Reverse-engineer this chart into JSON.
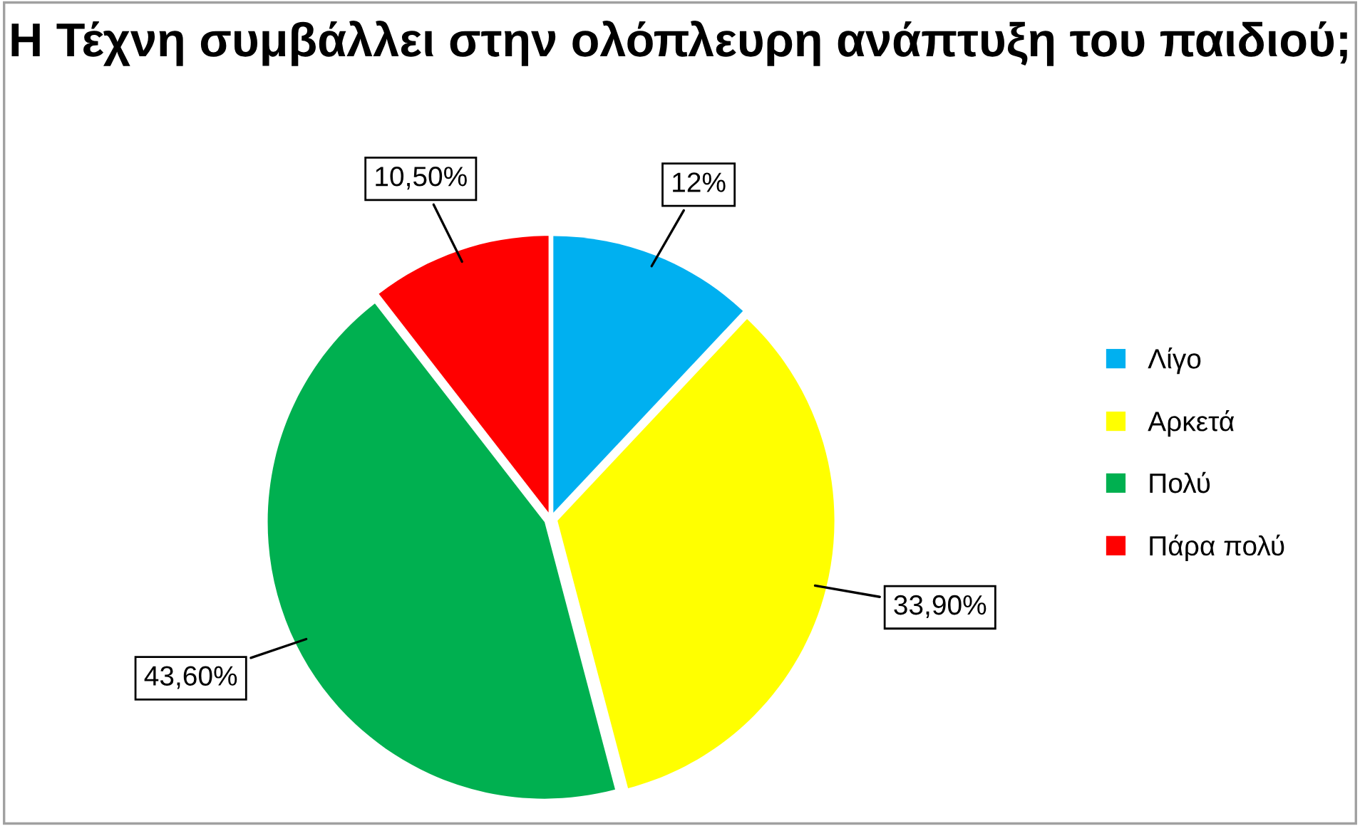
{
  "chart_data": {
    "type": "pie",
    "title": "Η Τέχνη συμβάλλει στην ολόπλευρη ανάπτυξη του παιδιού;",
    "categories": [
      "Λίγο",
      "Αρκετά",
      "Πολύ",
      "Πάρα πολύ"
    ],
    "values": [
      12,
      33.9,
      43.6,
      10.5
    ],
    "value_labels": [
      "12%",
      "33,90%",
      "43,60%",
      "10,50%"
    ],
    "colors": [
      "#00b0f0",
      "#ffff00",
      "#00b050",
      "#ff0000"
    ],
    "legend": "right"
  }
}
